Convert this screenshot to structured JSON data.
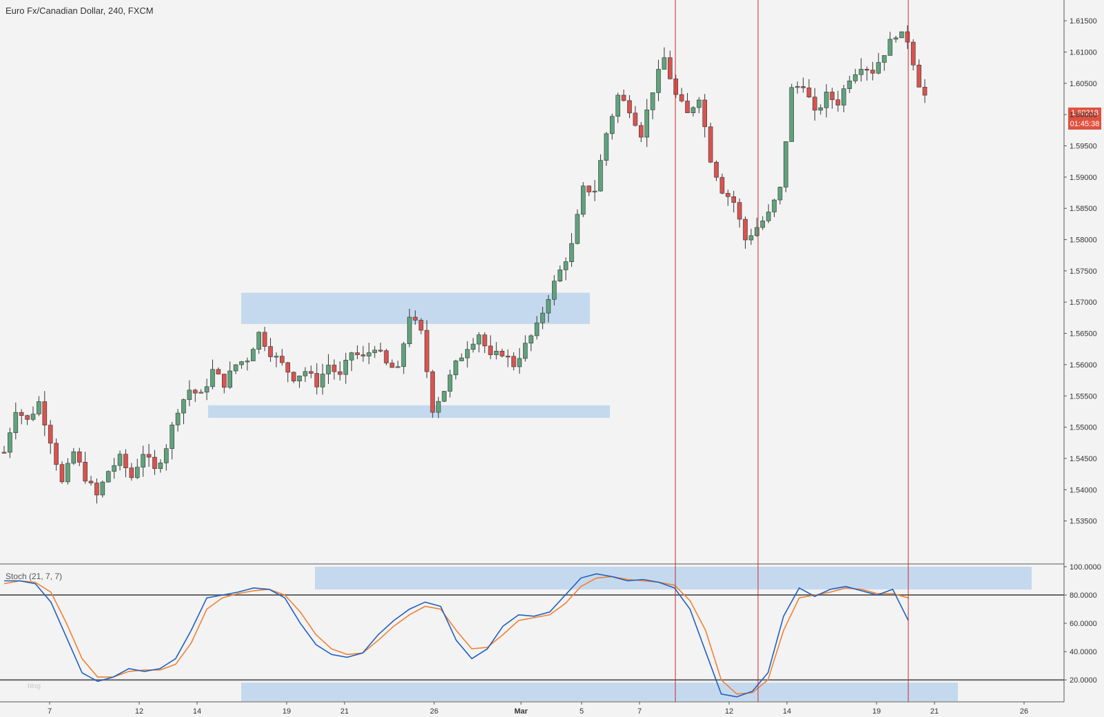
{
  "header": {
    "symbol_title": "Euro Fx/Canadian Dollar, 240, FXCM"
  },
  "indicator": {
    "label": "Stoch (21, 7, 7)"
  },
  "price_badge": {
    "price": "1.60218",
    "countdown": "01:45:38"
  },
  "watermark": "blog",
  "colors": {
    "up_candle": "#5fa37c",
    "down_candle": "#d9534f",
    "zone": "#bcd4ec",
    "k_line": "#1f5fbf",
    "d_line": "#f08030",
    "vline": "#c62828"
  },
  "chart_data": [
    {
      "type": "candlestick",
      "title": "Euro Fx/Canadian Dollar, 240, FXCM",
      "ylim": [
        1.53,
        1.617
      ],
      "y_ticks": [
        "1.61500",
        "1.61000",
        "1.60500",
        "1.60000",
        "1.59500",
        "1.59000",
        "1.58500",
        "1.58000",
        "1.57500",
        "1.57000",
        "1.56500",
        "1.56000",
        "1.55500",
        "1.55000",
        "1.54500",
        "1.54000",
        "1.53500"
      ],
      "x_ticks": [
        "7",
        "12",
        "14",
        "19",
        "21",
        "26",
        "Mar",
        "5",
        "7",
        "12",
        "14",
        "19",
        "21",
        "26"
      ],
      "path": [
        1.546,
        1.553,
        1.551,
        1.554,
        1.548,
        1.541,
        1.546,
        1.542,
        1.539,
        1.543,
        1.545,
        1.542,
        1.546,
        1.543,
        1.547,
        1.553,
        1.556,
        1.555,
        1.559,
        1.557,
        1.56,
        1.561,
        1.565,
        1.562,
        1.56,
        1.558,
        1.559,
        1.557,
        1.56,
        1.558,
        1.562,
        1.561,
        1.563,
        1.56,
        1.559,
        1.568,
        1.565,
        1.553,
        1.556,
        1.56,
        1.563,
        1.565,
        1.561,
        1.562,
        1.56,
        1.563,
        1.566,
        1.571,
        1.575,
        1.579,
        1.588,
        1.588,
        1.597,
        1.603,
        1.601,
        1.597,
        1.604,
        1.609,
        1.603,
        1.6,
        1.603,
        1.593,
        1.588,
        1.586,
        1.58,
        1.582,
        1.584,
        1.588,
        1.604,
        1.605,
        1.6,
        1.603,
        1.602,
        1.606,
        1.608,
        1.607,
        1.61,
        1.613,
        1.612,
        1.605,
        1.601
      ],
      "support_zone": [
        1.5515,
        1.5535
      ],
      "resistance_zone": [
        1.5665,
        1.5715
      ]
    },
    {
      "type": "line",
      "title": "Stoch (21, 7, 7)",
      "ylim": [
        5,
        100
      ],
      "y_ticks": [
        "100.0000",
        "80.0000",
        "60.0000",
        "40.0000",
        "20.0000"
      ],
      "levels": [
        80,
        20
      ],
      "overbought_zone": [
        80,
        100
      ],
      "oversold_zone": [
        5,
        20
      ],
      "series": [
        {
          "name": "%K",
          "values": [
            90,
            90,
            88,
            75,
            50,
            25,
            19,
            22,
            28,
            26,
            28,
            35,
            55,
            78,
            80,
            82,
            85,
            84,
            78,
            60,
            45,
            38,
            36,
            39,
            52,
            62,
            70,
            75,
            72,
            48,
            35,
            42,
            58,
            66,
            65,
            68,
            80,
            92,
            95,
            93,
            90,
            91,
            89,
            85,
            70,
            40,
            10,
            8,
            12,
            25,
            65,
            85,
            79,
            84,
            86,
            83,
            80,
            84,
            62
          ]
        },
        {
          "name": "%D",
          "values": [
            88,
            90,
            89,
            82,
            60,
            35,
            22,
            22,
            26,
            27,
            27,
            31,
            46,
            70,
            78,
            81,
            83,
            84,
            80,
            68,
            52,
            42,
            38,
            39,
            48,
            58,
            66,
            72,
            70,
            55,
            42,
            43,
            52,
            62,
            64,
            66,
            74,
            86,
            92,
            93,
            91,
            90,
            89,
            87,
            76,
            55,
            20,
            10,
            11,
            20,
            55,
            78,
            80,
            82,
            85,
            84,
            81,
            81,
            78
          ]
        }
      ]
    }
  ]
}
